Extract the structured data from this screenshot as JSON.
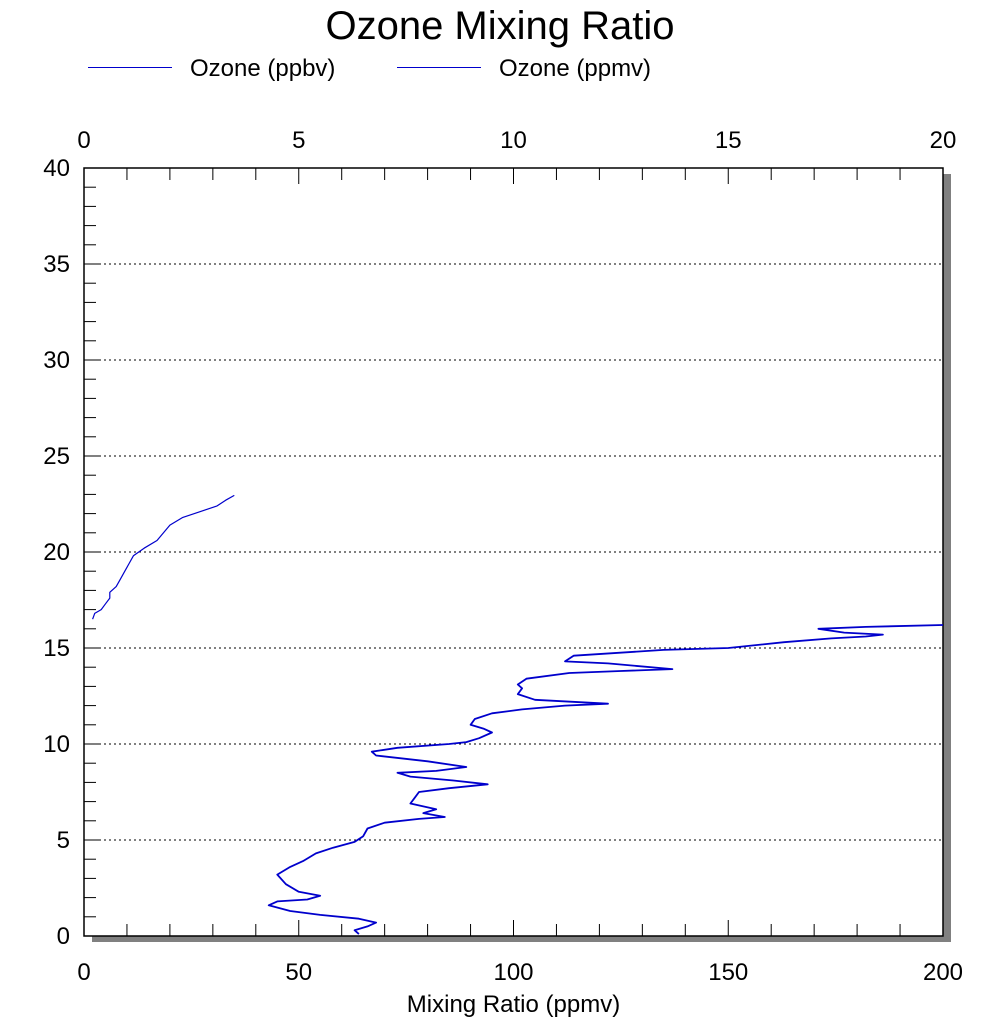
{
  "chart_data": {
    "type": "line",
    "title": "Ozone Mixing Ratio",
    "xlabel": "Mixing Ratio (ppmv)",
    "ylabel": "",
    "xlim": [
      0,
      200
    ],
    "x2lim": [
      0,
      20
    ],
    "ylim": [
      0,
      40
    ],
    "x_ticks": [
      0,
      50,
      100,
      150,
      200
    ],
    "x2_ticks": [
      0,
      5,
      10,
      15,
      20
    ],
    "y_ticks": [
      0,
      5,
      10,
      15,
      20,
      25,
      30,
      35,
      40
    ],
    "grid": "horizontal-dotted",
    "legend_position": "top-left",
    "series": [
      {
        "name": "Ozone (ppbv)",
        "axis": "bottom",
        "color": "#0000cc",
        "points": [
          [
            64,
            0.1
          ],
          [
            63,
            0.3
          ],
          [
            66,
            0.5
          ],
          [
            68,
            0.7
          ],
          [
            64,
            0.9
          ],
          [
            55,
            1.1
          ],
          [
            48,
            1.3
          ],
          [
            43,
            1.6
          ],
          [
            45,
            1.8
          ],
          [
            52,
            1.9
          ],
          [
            55,
            2.1
          ],
          [
            50,
            2.3
          ],
          [
            47,
            2.7
          ],
          [
            45,
            3.2
          ],
          [
            48,
            3.6
          ],
          [
            51,
            3.9
          ],
          [
            54,
            4.3
          ],
          [
            58,
            4.6
          ],
          [
            63,
            4.9
          ],
          [
            65,
            5.2
          ],
          [
            66,
            5.6
          ],
          [
            70,
            5.9
          ],
          [
            78,
            6.1
          ],
          [
            84,
            6.2
          ],
          [
            79,
            6.4
          ],
          [
            82,
            6.6
          ],
          [
            76,
            6.9
          ],
          [
            77,
            7.2
          ],
          [
            78,
            7.5
          ],
          [
            85,
            7.7
          ],
          [
            94,
            7.9
          ],
          [
            86,
            8.1
          ],
          [
            76,
            8.3
          ],
          [
            73,
            8.5
          ],
          [
            82,
            8.6
          ],
          [
            89,
            8.8
          ],
          [
            80,
            9.1
          ],
          [
            68,
            9.4
          ],
          [
            67,
            9.6
          ],
          [
            73,
            9.8
          ],
          [
            85,
            10.0
          ],
          [
            89,
            10.1
          ],
          [
            92,
            10.3
          ],
          [
            95,
            10.6
          ],
          [
            93,
            10.8
          ],
          [
            90,
            11.0
          ],
          [
            91,
            11.3
          ],
          [
            95,
            11.6
          ],
          [
            102,
            11.8
          ],
          [
            112,
            12.0
          ],
          [
            122,
            12.1
          ],
          [
            105,
            12.3
          ],
          [
            101,
            12.6
          ],
          [
            102,
            12.9
          ],
          [
            101,
            13.1
          ],
          [
            103,
            13.4
          ],
          [
            113,
            13.7
          ],
          [
            125,
            13.8
          ],
          [
            137,
            13.9
          ],
          [
            122,
            14.2
          ],
          [
            112,
            14.3
          ],
          [
            114,
            14.6
          ],
          [
            135,
            14.9
          ],
          [
            150,
            15.0
          ],
          [
            163,
            15.3
          ],
          [
            174,
            15.5
          ],
          [
            182,
            15.6
          ],
          [
            186,
            15.7
          ],
          [
            177,
            15.8
          ],
          [
            171,
            16.0
          ],
          [
            182,
            16.1
          ],
          [
            200,
            16.2
          ]
        ]
      },
      {
        "name": "Ozone (ppmv)",
        "axis": "top",
        "color": "#0000cc",
        "points": [
          [
            0.2,
            16.5
          ],
          [
            0.25,
            16.8
          ],
          [
            0.4,
            17.0
          ],
          [
            0.5,
            17.3
          ],
          [
            0.6,
            17.6
          ],
          [
            0.6,
            17.9
          ],
          [
            0.75,
            18.2
          ],
          [
            0.85,
            18.6
          ],
          [
            0.95,
            19.0
          ],
          [
            1.05,
            19.4
          ],
          [
            1.15,
            19.8
          ],
          [
            1.4,
            20.2
          ],
          [
            1.7,
            20.6
          ],
          [
            1.85,
            21.0
          ],
          [
            2.0,
            21.4
          ],
          [
            2.3,
            21.8
          ],
          [
            2.7,
            22.1
          ],
          [
            3.1,
            22.4
          ],
          [
            3.3,
            22.7
          ],
          [
            3.5,
            22.95
          ]
        ]
      }
    ]
  }
}
